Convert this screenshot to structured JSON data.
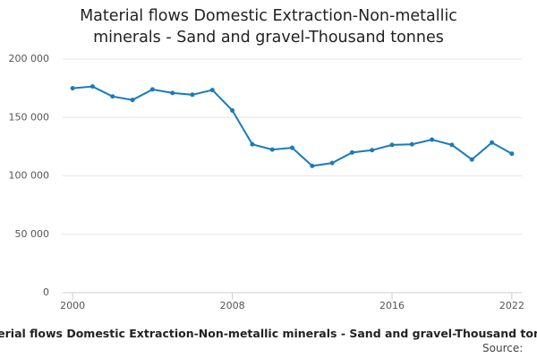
{
  "chart_data": {
    "type": "line",
    "title": "Material flows Domestic Extraction-Non-metallic minerals - Sand and gravel-Thousand tonnes",
    "caption": "Material flows Domestic Extraction-Non-metallic minerals - Sand and gravel-Thousand tonnes",
    "source": "Source:",
    "x": [
      2000,
      2001,
      2002,
      2003,
      2004,
      2005,
      2006,
      2007,
      2008,
      2009,
      2010,
      2011,
      2012,
      2013,
      2014,
      2015,
      2016,
      2017,
      2018,
      2019,
      2020,
      2021,
      2022
    ],
    "series": [
      {
        "name": "Sand and gravel",
        "color": "#1a7bb9",
        "values": [
          175000,
          176500,
          168000,
          165000,
          174000,
          171000,
          169500,
          173500,
          156000,
          127000,
          122500,
          124000,
          108500,
          111000,
          120000,
          122000,
          126500,
          127000,
          131000,
          126500,
          114000,
          128500,
          119000
        ]
      }
    ],
    "xlim": [
      1999.5,
      2022.5
    ],
    "xticks": [
      2000,
      2008,
      2016,
      2022
    ],
    "ylim": [
      0,
      200000
    ],
    "yticks": [
      0,
      {
        "value": 50000,
        "label": "50 000"
      },
      {
        "value": 100000,
        "label": "100 000"
      },
      {
        "value": 150000,
        "label": "150 000"
      },
      {
        "value": 200000,
        "label": "200 000"
      }
    ],
    "grid": true
  }
}
